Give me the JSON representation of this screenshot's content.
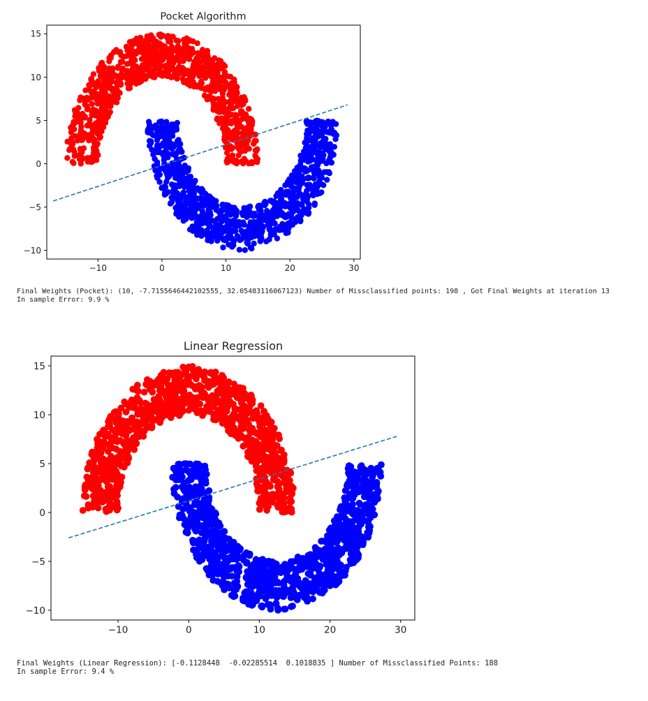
{
  "colors": {
    "class_top": "#ff0000",
    "class_bottom": "#0000ff",
    "boundary": "#1f77b4",
    "axis": "#000000"
  },
  "outputs": {
    "pocket_text": "Final Weights (Pocket): (10, -7.7155646442102555, 32.05483116067123) Number of Missclassified points: 198 , Got Final Weights at iteration 13\nIn sample Error: 9.9 %",
    "linreg_text": "Final Weights (Linear Regression): [-0.1128448  -0.02285514  0.1018835 ] Number of Missclassified Points: 188\nIn sample Error: 9.4 %"
  },
  "chart_data": [
    {
      "type": "scatter",
      "title": "Pocket Algorithm",
      "xlabel": "",
      "ylabel": "",
      "xlim": [
        -18,
        31
      ],
      "ylim": [
        -11,
        16
      ],
      "xticks": [
        -10,
        0,
        10,
        20,
        30
      ],
      "xtick_labels": [
        "−10",
        "0",
        "10",
        "20",
        "30"
      ],
      "yticks": [
        -10,
        -5,
        0,
        5,
        10,
        15
      ],
      "ytick_labels": [
        "−10",
        "−5",
        "0",
        "5",
        "10",
        "15"
      ],
      "grid": false,
      "series": [
        {
          "shape": "upper half-ring",
          "center": [
            0,
            0
          ],
          "inner_radius": 10,
          "outer_radius": 15,
          "color": "red",
          "points": 1000
        },
        {
          "shape": "lower half-ring",
          "center": [
            12.5,
            5
          ],
          "inner_radius": 10,
          "outer_radius": 15,
          "color": "blue",
          "points": 1000
        }
      ],
      "boundary_line": {
        "style": "dashed",
        "x": [
          -17,
          29
        ],
        "y": [
          -4.3,
          6.8
        ]
      }
    },
    {
      "type": "scatter",
      "title": "Linear Regression",
      "xlabel": "",
      "ylabel": "",
      "xlim": [
        -19.5,
        32
      ],
      "ylim": [
        -11,
        16
      ],
      "xticks": [
        -10,
        0,
        10,
        20,
        30
      ],
      "xtick_labels": [
        "−10",
        "0",
        "10",
        "20",
        "30"
      ],
      "yticks": [
        -10,
        -5,
        0,
        5,
        10,
        15
      ],
      "ytick_labels": [
        "−10",
        "−5",
        "0",
        "5",
        "10",
        "15"
      ],
      "grid": false,
      "series": [
        {
          "shape": "upper half-ring",
          "center": [
            0,
            0
          ],
          "inner_radius": 10,
          "outer_radius": 15,
          "color": "red",
          "points": 1000
        },
        {
          "shape": "lower half-ring",
          "center": [
            12.5,
            5
          ],
          "inner_radius": 10,
          "outer_radius": 15,
          "color": "blue",
          "points": 1000
        }
      ],
      "boundary_line": {
        "style": "dashed",
        "x": [
          -17,
          29.5
        ],
        "y": [
          -2.6,
          7.8
        ]
      }
    }
  ]
}
